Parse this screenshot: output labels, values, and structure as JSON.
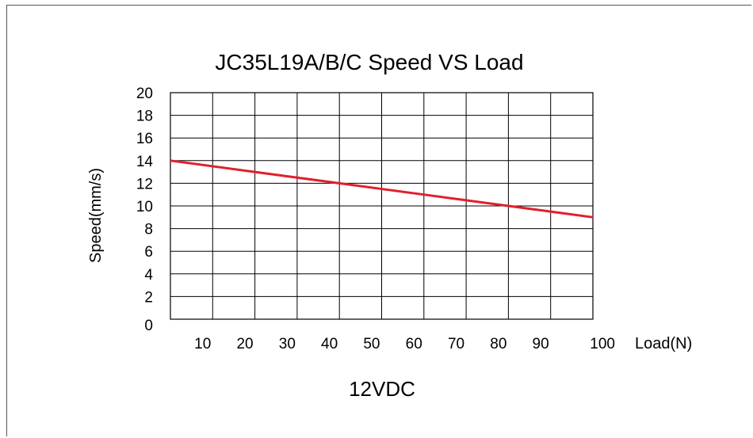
{
  "chart_data": {
    "type": "line",
    "title": "JC35L19A/B/C Speed VS Load",
    "subtitle": "12VDC",
    "xlabel": "Load(N)",
    "ylabel": "Speed(mm/s)",
    "xlim": [
      0,
      100
    ],
    "ylim": [
      0,
      20
    ],
    "x_ticks": [
      10,
      20,
      30,
      40,
      50,
      60,
      70,
      80,
      90,
      100
    ],
    "y_ticks": [
      0,
      2,
      4,
      6,
      8,
      10,
      12,
      14,
      16,
      18,
      20
    ],
    "grid": true,
    "series": [
      {
        "color": "#e0202a",
        "x": [
          0,
          10,
          20,
          30,
          40,
          50,
          60,
          70,
          80,
          90,
          100
        ],
        "y": [
          14,
          13.5,
          13,
          12.5,
          12,
          11.5,
          11,
          10.5,
          10,
          9.5,
          9
        ]
      }
    ]
  }
}
